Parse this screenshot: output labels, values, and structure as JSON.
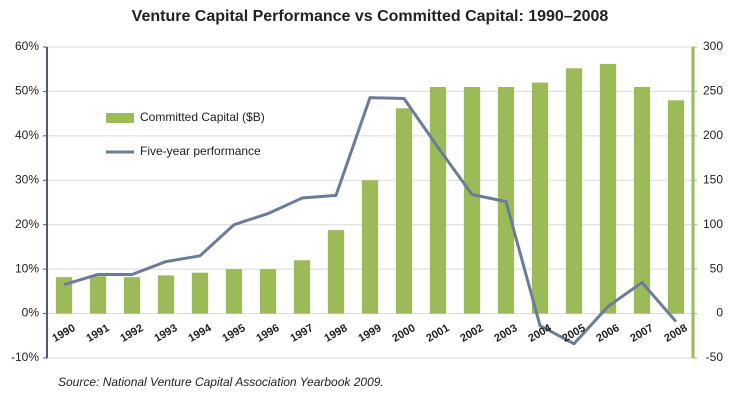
{
  "chart_data": {
    "type": "combo",
    "title": "Venture Capital Performance vs Committed Capital: 1990–2008",
    "source": "Source: National Venture Capital Association Yearbook 2009.",
    "categories": [
      "1990",
      "1991",
      "1992",
      "1993",
      "1994",
      "1995",
      "1996",
      "1997",
      "1998",
      "1999",
      "2000",
      "2001",
      "2002",
      "2003",
      "2004",
      "2005",
      "2006",
      "2007",
      "2008"
    ],
    "series": [
      {
        "name": "Committed Capital ($B)",
        "type": "bar",
        "axis": "y2",
        "color": "#9bbb59",
        "values": [
          41,
          42,
          41,
          43,
          46,
          50,
          50,
          60,
          94,
          150,
          231,
          255,
          255,
          255,
          260,
          276,
          281,
          255,
          240
        ]
      },
      {
        "name": "Five-year performance",
        "type": "line",
        "axis": "y",
        "color": "#6b7c99",
        "values": [
          6.5,
          8.8,
          8.8,
          11.7,
          13,
          20,
          22.5,
          26,
          26.6,
          48.6,
          48.4,
          37.4,
          26.8,
          25.2,
          -2.7,
          -6.8,
          1.6,
          7,
          -1.8
        ]
      }
    ],
    "ylim": [
      -10,
      60
    ],
    "yticks": [
      {
        "value": -10,
        "label": "-10%"
      },
      {
        "value": 0,
        "label": "0%"
      },
      {
        "value": 10,
        "label": "10%"
      },
      {
        "value": 20,
        "label": "20%"
      },
      {
        "value": 30,
        "label": "30%"
      },
      {
        "value": 40,
        "label": "40%"
      },
      {
        "value": 50,
        "label": "50%"
      },
      {
        "value": 60,
        "label": "60%"
      }
    ],
    "y2lim": [
      -50,
      300
    ],
    "y2ticks": [
      -50,
      0,
      50,
      100,
      150,
      200,
      250,
      300
    ],
    "grid": true
  }
}
